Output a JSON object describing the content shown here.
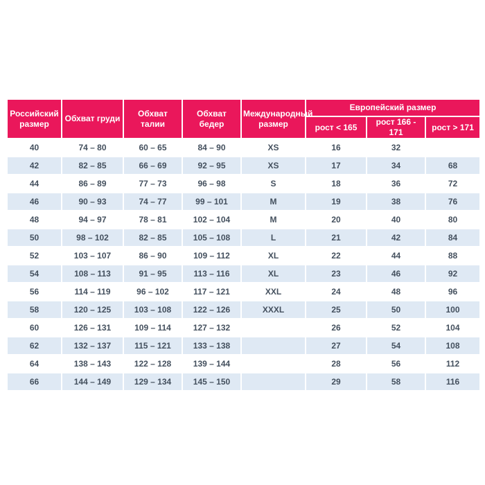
{
  "table": {
    "headers": {
      "russian_size": "Российский размер",
      "chest": "Обхват груди",
      "waist": "Обхват талии",
      "hips": "Обхват бедер",
      "international_size": "Международный размер",
      "european_size": "Европейский размер",
      "height_lt_165": "рост < 165",
      "height_166_171": "рост 166 - 171",
      "height_gt_171": "рост > 171"
    },
    "rows": [
      [
        "40",
        "74 – 80",
        "60 – 65",
        "84 – 90",
        "XS",
        "16",
        "32",
        ""
      ],
      [
        "42",
        "82 – 85",
        "66 – 69",
        "92 – 95",
        "XS",
        "17",
        "34",
        "68"
      ],
      [
        "44",
        "86 – 89",
        "77 – 73",
        "96 – 98",
        "S",
        "18",
        "36",
        "72"
      ],
      [
        "46",
        "90 – 93",
        "74 – 77",
        "99 – 101",
        "M",
        "19",
        "38",
        "76"
      ],
      [
        "48",
        "94 – 97",
        "78 – 81",
        "102 – 104",
        "M",
        "20",
        "40",
        "80"
      ],
      [
        "50",
        "98 – 102",
        "82 – 85",
        "105 – 108",
        "L",
        "21",
        "42",
        "84"
      ],
      [
        "52",
        "103 – 107",
        "86 – 90",
        "109 – 112",
        "XL",
        "22",
        "44",
        "88"
      ],
      [
        "54",
        "108 – 113",
        "91 – 95",
        "113 – 116",
        "XL",
        "23",
        "46",
        "92"
      ],
      [
        "56",
        "114 – 119",
        "96 – 102",
        "117 – 121",
        "XXL",
        "24",
        "48",
        "96"
      ],
      [
        "58",
        "120 – 125",
        "103 – 108",
        "122 – 126",
        "XXXL",
        "25",
        "50",
        "100"
      ],
      [
        "60",
        "126 – 131",
        "109 – 114",
        "127 – 132",
        "",
        "26",
        "52",
        "104"
      ],
      [
        "62",
        "132 – 137",
        "115 – 121",
        "133 – 138",
        "",
        "27",
        "54",
        "108"
      ],
      [
        "64",
        "138 – 143",
        "122 – 128",
        "139 – 144",
        "",
        "28",
        "56",
        "112"
      ],
      [
        "66",
        "144 – 149",
        "129 – 134",
        "145 – 150",
        "",
        "29",
        "58",
        "116"
      ]
    ],
    "colors": {
      "header_bg": "#EA175B",
      "header_text": "#FFFFFF",
      "row_alt_bg": "#DFE9F4",
      "data_text": "#44505E"
    }
  }
}
